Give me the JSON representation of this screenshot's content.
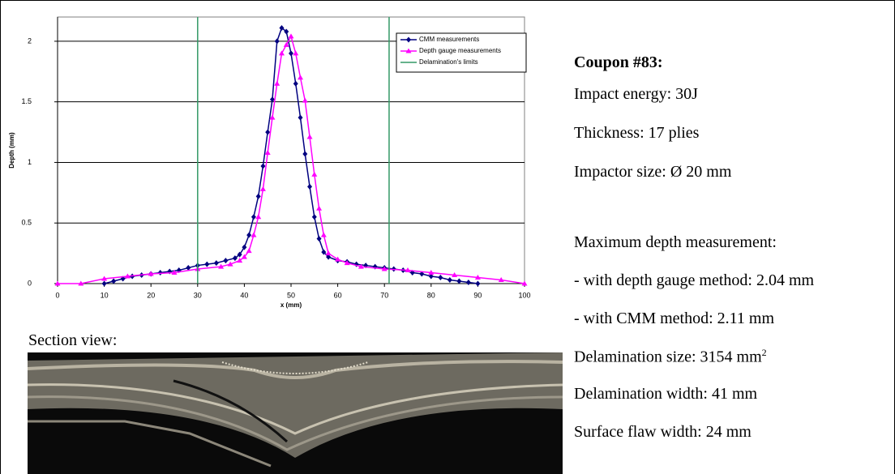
{
  "chart_data": {
    "type": "line",
    "xlabel": "x (mm)",
    "ylabel": "Depth (mm)",
    "xlim": [
      0,
      100
    ],
    "xticks": [
      0,
      10,
      20,
      30,
      40,
      50,
      60,
      70,
      80,
      90,
      100
    ],
    "ylim": [
      0,
      2.2
    ],
    "yticks": [
      0,
      0.5,
      1,
      1.5,
      2
    ],
    "grid": true,
    "legend": "upper right",
    "series": [
      {
        "name": "CMM measurements",
        "color": "#000080",
        "marker": "diamond",
        "x": [
          10,
          12,
          14,
          16,
          18,
          20,
          22,
          24,
          26,
          28,
          30,
          32,
          34,
          36,
          38,
          39,
          40,
          41,
          42,
          43,
          44,
          45,
          46,
          47,
          48,
          49,
          50,
          51,
          52,
          53,
          54,
          55,
          56,
          57,
          58,
          60,
          62,
          64,
          66,
          68,
          70,
          72,
          74,
          76,
          78,
          80,
          82,
          84,
          86,
          88,
          90
        ],
        "values": [
          0,
          0.02,
          0.04,
          0.06,
          0.07,
          0.08,
          0.09,
          0.1,
          0.11,
          0.13,
          0.15,
          0.16,
          0.17,
          0.19,
          0.21,
          0.24,
          0.3,
          0.4,
          0.55,
          0.72,
          0.97,
          1.25,
          1.52,
          2.0,
          2.11,
          2.08,
          1.9,
          1.65,
          1.37,
          1.07,
          0.8,
          0.55,
          0.37,
          0.26,
          0.22,
          0.19,
          0.18,
          0.16,
          0.15,
          0.14,
          0.13,
          0.12,
          0.11,
          0.09,
          0.08,
          0.06,
          0.05,
          0.03,
          0.02,
          0.01,
          0
        ]
      },
      {
        "name": "Depth gauge measurements",
        "color": "#ff00ff",
        "marker": "triangle",
        "x": [
          0,
          5,
          10,
          15,
          20,
          25,
          30,
          35,
          37,
          39,
          40,
          41,
          42,
          43,
          44,
          45,
          46,
          47,
          48,
          49,
          50,
          51,
          52,
          53,
          54,
          55,
          56,
          57,
          58,
          60,
          62,
          65,
          70,
          75,
          80,
          85,
          90,
          95,
          100
        ],
        "values": [
          0,
          0,
          0.04,
          0.06,
          0.08,
          0.09,
          0.12,
          0.14,
          0.16,
          0.19,
          0.22,
          0.27,
          0.4,
          0.55,
          0.78,
          1.08,
          1.37,
          1.65,
          1.9,
          1.97,
          2.04,
          1.9,
          1.7,
          1.51,
          1.21,
          0.9,
          0.62,
          0.4,
          0.25,
          0.2,
          0.17,
          0.14,
          0.12,
          0.11,
          0.09,
          0.07,
          0.05,
          0.03,
          0
        ]
      },
      {
        "name": "Delamination's limits",
        "color": "#339966",
        "marker": "vline",
        "x": [
          30,
          71
        ]
      }
    ]
  },
  "info": {
    "title": "Coupon #83:",
    "lines": [
      "Impact energy: 30J",
      "Thickness: 17 plies",
      "Impactor size: Ø 20 mm"
    ],
    "lines2": [
      "Maximum depth measurement:",
      "- with depth gauge method: 2.04 mm",
      "- with CMM method: 2.11 mm"
    ],
    "delam_size": {
      "text": "Delamination size: 3154 mm",
      "sup": "2"
    },
    "lines3": [
      "Delamination width: 41 mm",
      "Surface flaw width: 24 mm"
    ]
  },
  "section": {
    "label": "Section view:"
  }
}
